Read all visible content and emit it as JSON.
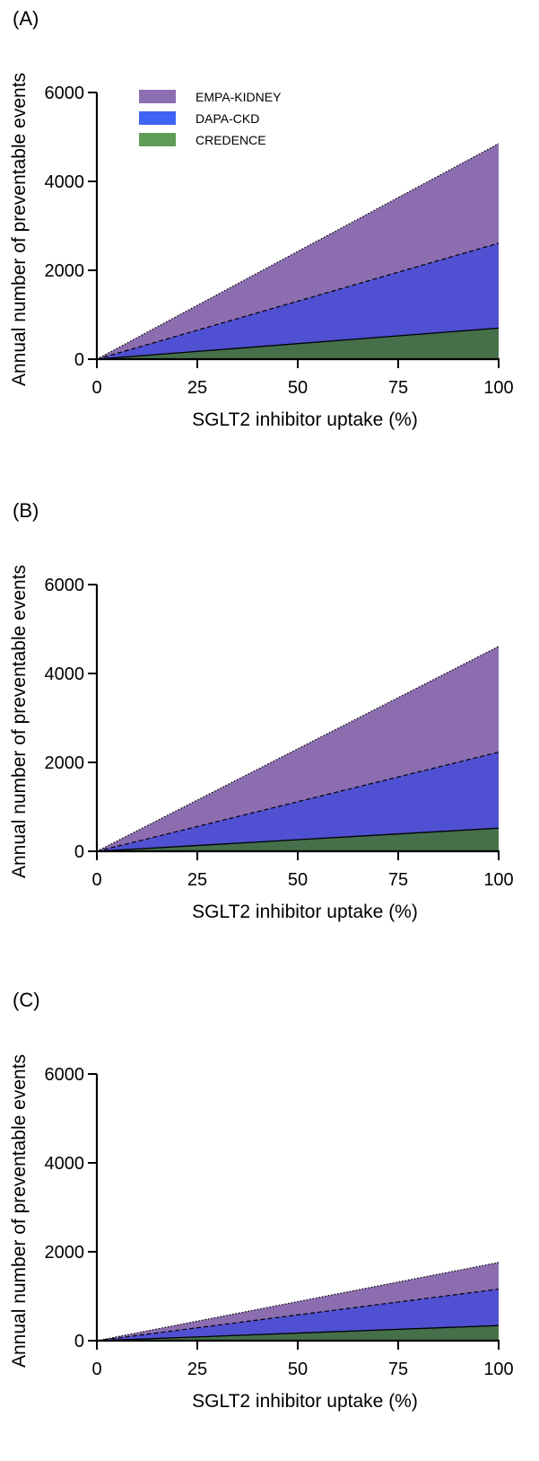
{
  "colors": {
    "empa": "#8c6db0",
    "dapa": "#4f50d2",
    "credence": "#45704a",
    "legend_empa": "#8d6eb3",
    "legend_dapa": "#3f63f4",
    "legend_credence": "#5f9c57"
  },
  "legend": {
    "items": [
      {
        "label": "EMPA-KIDNEY",
        "color_key": "legend_empa"
      },
      {
        "label": "DAPA-CKD",
        "color_key": "legend_dapa"
      },
      {
        "label": "CREDENCE",
        "color_key": "legend_credence"
      }
    ]
  },
  "chart_data": [
    {
      "type": "area",
      "panel_label": "(A)",
      "xlabel": "SGLT2 inhibitor uptake (%)",
      "ylabel": "Annual number of preventable events",
      "xlim": [
        0,
        100
      ],
      "ylim": [
        0,
        6000
      ],
      "xticks": [
        0,
        25,
        50,
        75,
        100
      ],
      "yticks": [
        0,
        2000,
        4000,
        6000
      ],
      "x": [
        0,
        100
      ],
      "legend_position": "top-left",
      "series": [
        {
          "name": "EMPA-KIDNEY",
          "values": [
            0,
            4850
          ],
          "line": "dotted",
          "color_key": "empa"
        },
        {
          "name": "DAPA-CKD",
          "values": [
            0,
            2610
          ],
          "line": "dashed",
          "color_key": "dapa"
        },
        {
          "name": "CREDENCE",
          "values": [
            0,
            700
          ],
          "line": "solid",
          "color_key": "credence"
        }
      ]
    },
    {
      "type": "area",
      "panel_label": "(B)",
      "xlabel": "SGLT2 inhibitor uptake (%)",
      "ylabel": "Annual number of preventable events",
      "xlim": [
        0,
        100
      ],
      "ylim": [
        0,
        6000
      ],
      "xticks": [
        0,
        25,
        50,
        75,
        100
      ],
      "yticks": [
        0,
        2000,
        4000,
        6000
      ],
      "x": [
        0,
        100
      ],
      "series": [
        {
          "name": "EMPA-KIDNEY",
          "values": [
            0,
            4610
          ],
          "line": "dotted",
          "color_key": "empa"
        },
        {
          "name": "DAPA-CKD",
          "values": [
            0,
            2230
          ],
          "line": "dashed",
          "color_key": "dapa"
        },
        {
          "name": "CREDENCE",
          "values": [
            0,
            520
          ],
          "line": "solid",
          "color_key": "credence"
        }
      ]
    },
    {
      "type": "area",
      "panel_label": "(C)",
      "xlabel": "SGLT2 inhibitor uptake (%)",
      "ylabel": "Annual number of preventable events",
      "xlim": [
        0,
        100
      ],
      "ylim": [
        0,
        6000
      ],
      "xticks": [
        0,
        25,
        50,
        75,
        100
      ],
      "yticks": [
        0,
        2000,
        4000,
        6000
      ],
      "x": [
        0,
        100
      ],
      "series": [
        {
          "name": "EMPA-KIDNEY",
          "values": [
            0,
            1760
          ],
          "line": "dotted",
          "color_key": "empa"
        },
        {
          "name": "DAPA-CKD",
          "values": [
            0,
            1160
          ],
          "line": "dashed",
          "color_key": "dapa"
        },
        {
          "name": "CREDENCE",
          "values": [
            0,
            340
          ],
          "line": "solid",
          "color_key": "credence"
        }
      ]
    }
  ]
}
